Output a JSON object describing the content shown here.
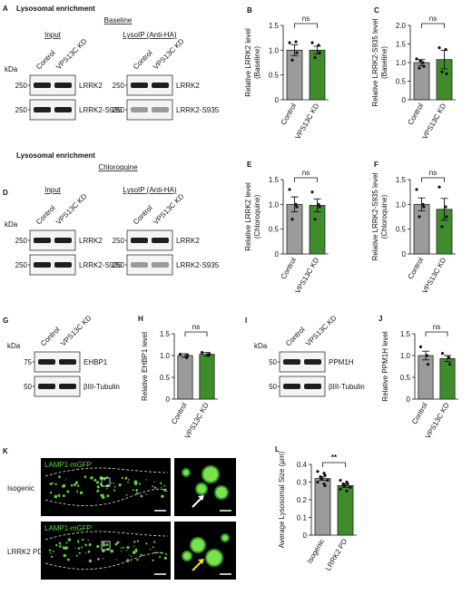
{
  "blots": [
    {
      "letter": "A",
      "heading": "Lysosomal enrichment",
      "condition": "Baseline",
      "kda": "kDa",
      "membranes": [
        {
          "title": "Input",
          "lanes": [
            "Control",
            "VPS13C KD"
          ],
          "markers": [
            250,
            250
          ],
          "bands": [
            "LRRK2",
            "LRRK2-S935"
          ]
        },
        {
          "title": "LysoIP (Anti-HA)",
          "lanes": [
            "Control",
            "VPS13C KD"
          ],
          "markers": [
            250,
            250
          ],
          "bands": [
            "LRRK2",
            "LRRK2-S935"
          ]
        }
      ]
    },
    {
      "letter": "D",
      "heading": "Lysosomal enrichment",
      "condition": "Chloroquine",
      "kda": "kDa",
      "membranes": [
        {
          "title": "Input",
          "lanes": [
            "Control",
            "VPS13C KD"
          ],
          "markers": [
            250,
            250
          ],
          "bands": [
            "LRRK2",
            "LRRK2-S935"
          ]
        },
        {
          "title": "LysoIP (Anti-HA)",
          "lanes": [
            "Control",
            "VPS13C KD"
          ],
          "markers": [
            250,
            250
          ],
          "bands": [
            "LRRK2",
            "LRRK2-S935"
          ]
        }
      ]
    },
    {
      "letter": "G",
      "kda": "kDa",
      "membranes": [
        {
          "lanes": [
            "Control",
            "VPS13C KD"
          ],
          "markers": [
            75,
            50
          ],
          "bands": [
            "EHBP1",
            "βIII-Tubulin"
          ]
        }
      ]
    },
    {
      "letter": "I",
      "kda": "kDa",
      "membranes": [
        {
          "lanes": [
            "Control",
            "VPS13C KD"
          ],
          "markers": [
            50,
            50
          ],
          "bands": [
            "PPM1H",
            "βIII-Tubulin"
          ]
        }
      ]
    }
  ],
  "images": {
    "letter": "K",
    "rows": [
      {
        "label": "Isogenic",
        "channel": "LAMP1-mGFP"
      },
      {
        "label": "LRRK2 PD",
        "channel": "LAMP1-mGFP"
      }
    ]
  },
  "chart_data": [
    {
      "type": "bar",
      "letter": "B",
      "y_label": [
        "Relative LRRK2 level",
        "(Baseline)"
      ],
      "categories": [
        "Control",
        "VPS13C KD"
      ],
      "values": [
        1.0,
        1.0
      ],
      "errors": [
        0.11,
        0.08
      ],
      "points": [
        [
          1.15,
          1.17,
          0.95,
          0.8
        ],
        [
          1.15,
          1.1,
          0.95,
          0.85
        ]
      ],
      "colors": [
        "#9b9b9b",
        "#3e8c2c"
      ],
      "ylim": [
        0,
        1.5
      ],
      "yticks": [
        0,
        0.5,
        {
          "value": 1,
          "label": "1.0"
        },
        1.5
      ],
      "annotation": "ns"
    },
    {
      "type": "bar",
      "letter": "C",
      "y_label": [
        "Relative LRRK2-S935 level",
        "(Baseline)"
      ],
      "categories": [
        "Control",
        "VPS13C KD"
      ],
      "values": [
        1.0,
        1.08
      ],
      "errors": [
        0.08,
        0.25
      ],
      "points": [
        [
          1.1,
          1.0,
          0.9,
          0.85,
          1.05
        ],
        [
          1.4,
          1.35,
          0.7,
          0.75
        ]
      ],
      "colors": [
        "#9b9b9b",
        "#3e8c2c"
      ],
      "ylim": [
        0,
        2
      ],
      "yticks": [
        0,
        0.5,
        {
          "value": 1,
          "label": "1.0"
        },
        1.5,
        {
          "value": 2,
          "label": "2.0"
        }
      ],
      "annotation": "ns"
    },
    {
      "type": "bar",
      "letter": "E",
      "y_label": [
        "Relative LRRK2 level",
        "(Chloroquine)"
      ],
      "categories": [
        "Control",
        "VPS13C KD"
      ],
      "values": [
        1.0,
        0.98
      ],
      "errors": [
        0.15,
        0.13
      ],
      "points": [
        [
          1.3,
          1.0,
          0.95,
          0.7
        ],
        [
          1.25,
          1.0,
          0.95,
          0.7
        ]
      ],
      "colors": [
        "#9b9b9b",
        "#3e8c2c"
      ],
      "ylim": [
        0,
        1.5
      ],
      "yticks": [
        0,
        0.5,
        {
          "value": 1,
          "label": "1.0"
        },
        1.5
      ],
      "annotation": "ns"
    },
    {
      "type": "bar",
      "letter": "F",
      "y_label": [
        "Relative LRRK2-S935 level",
        "(Chloroquine)"
      ],
      "categories": [
        "Control",
        "VPS13C KD"
      ],
      "values": [
        1.0,
        0.9
      ],
      "errors": [
        0.13,
        0.22
      ],
      "points": [
        [
          1.3,
          1.0,
          0.95,
          0.75
        ],
        [
          1.35,
          0.95,
          0.75,
          0.55
        ]
      ],
      "colors": [
        "#9b9b9b",
        "#3e8c2c"
      ],
      "ylim": [
        0,
        1.5
      ],
      "yticks": [
        0,
        0.5,
        {
          "value": 1,
          "label": "1.0"
        },
        1.5
      ],
      "annotation": "ns"
    },
    {
      "type": "bar",
      "letter": "H",
      "y_label": [
        "Relative EHBP1 level"
      ],
      "categories": [
        "Control",
        "VPS13C KD"
      ],
      "values": [
        1.0,
        1.03
      ],
      "errors": [
        0.04,
        0.04
      ],
      "points": [
        [
          1.03,
          0.95,
          1.0
        ],
        [
          1.07,
          1.0,
          1.03
        ]
      ],
      "colors": [
        "#9b9b9b",
        "#3e8c2c"
      ],
      "ylim": [
        0,
        1.5
      ],
      "yticks": [
        0,
        0.5,
        {
          "value": 1,
          "label": "1.0"
        },
        1.5
      ],
      "annotation": "ns"
    },
    {
      "type": "bar",
      "letter": "J",
      "y_label": [
        "Relative PPM1H level"
      ],
      "categories": [
        "Control",
        "VPS13C KD"
      ],
      "values": [
        1.0,
        0.93
      ],
      "errors": [
        0.1,
        0.07
      ],
      "points": [
        [
          1.2,
          1.0,
          0.8
        ],
        [
          1.05,
          0.95,
          0.8
        ]
      ],
      "colors": [
        "#9b9b9b",
        "#3e8c2c"
      ],
      "ylim": [
        0,
        1.5
      ],
      "yticks": [
        0,
        0.5,
        {
          "value": 1,
          "label": "1.0"
        },
        1.5
      ],
      "annotation": "ns"
    },
    {
      "type": "bar",
      "letter": "L",
      "y_label": [
        "Average Lysosomal Size (µm)"
      ],
      "categories": [
        "Isogenic",
        "LRRK2 PD"
      ],
      "values": [
        0.32,
        0.28
      ],
      "errors": [
        0.01,
        0.01
      ],
      "points": [
        [
          0.36,
          0.35,
          0.34,
          0.33,
          0.32,
          0.31,
          0.3,
          0.29,
          0.28
        ],
        [
          0.31,
          0.3,
          0.29,
          0.29,
          0.28,
          0.27,
          0.26,
          0.25
        ]
      ],
      "colors": [
        "#9b9b9b",
        "#3e8c2c"
      ],
      "ylim": [
        0,
        0.4
      ],
      "yticks": [
        0,
        0.1,
        0.2,
        0.3,
        0.4
      ],
      "annotation": "**"
    }
  ]
}
